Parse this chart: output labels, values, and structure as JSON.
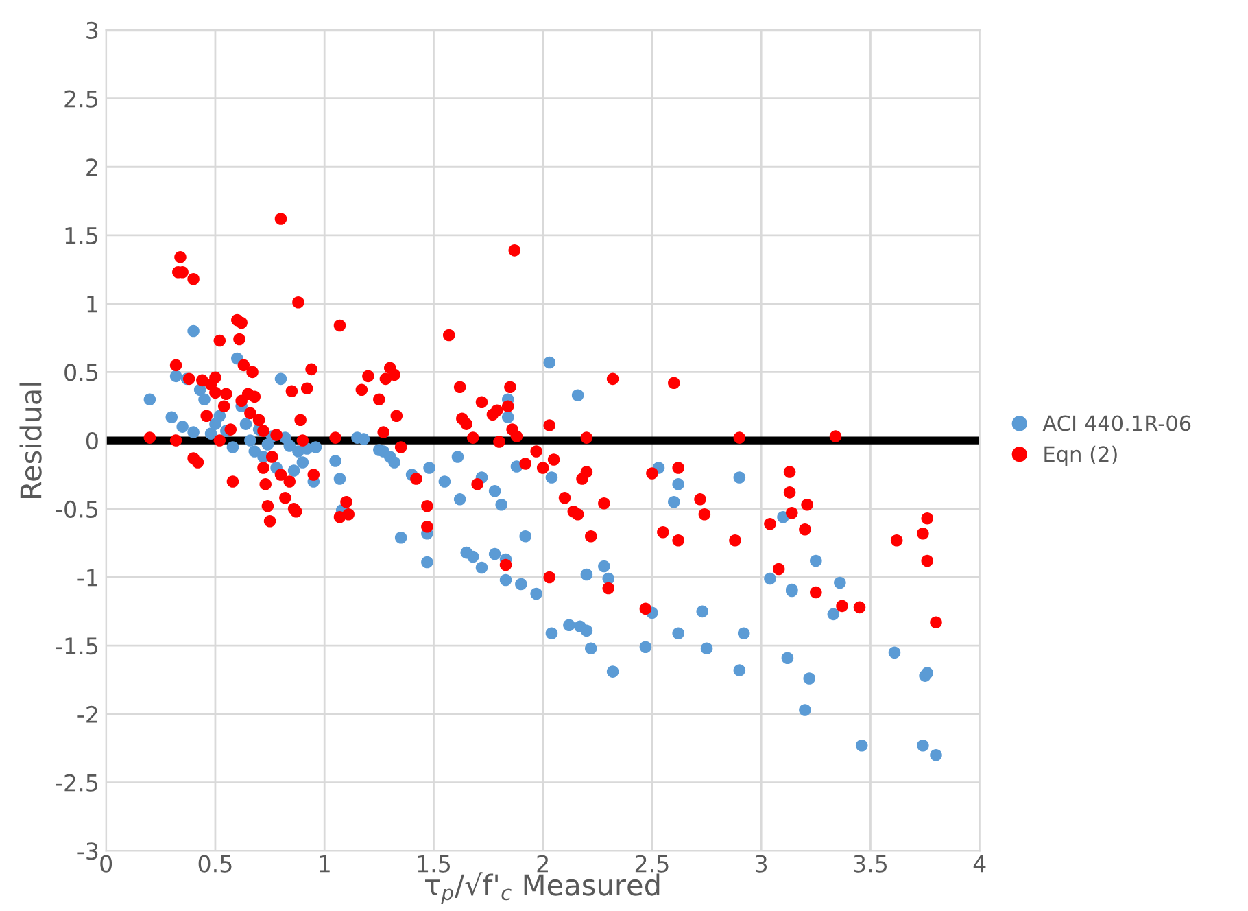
{
  "chart_data": {
    "type": "scatter",
    "xlabel": "τ$_{p}$/√f'$_{c}$ Measured",
    "ylabel": "Residual",
    "xlim": [
      0,
      4
    ],
    "xticks": [
      0,
      0.5,
      1,
      1.5,
      2,
      2.5,
      3,
      3.5,
      4
    ],
    "ylim": [
      -3,
      3
    ],
    "yticks": [
      -3,
      -2.5,
      -2,
      -1.5,
      -1,
      -0.5,
      0,
      0.5,
      1,
      1.5,
      2,
      2.5,
      3
    ],
    "grid": true,
    "legend": "right",
    "marker": "circle",
    "ref_lines": [
      {
        "axis": "y",
        "value": 0,
        "color": "#000000"
      }
    ],
    "series": [
      {
        "name": "ACI 440.1R-06",
        "color": "#5b9bd5",
        "x": [
          0.2,
          0.3,
          0.32,
          0.35,
          0.37,
          0.4,
          0.4,
          0.43,
          0.45,
          0.48,
          0.5,
          0.52,
          0.55,
          0.58,
          0.6,
          0.62,
          0.64,
          0.66,
          0.68,
          0.7,
          0.72,
          0.74,
          0.76,
          0.78,
          0.8,
          0.82,
          0.84,
          0.86,
          0.88,
          0.9,
          0.92,
          0.95,
          0.96,
          1.05,
          1.07,
          1.08,
          1.15,
          1.18,
          1.25,
          1.27,
          1.3,
          1.32,
          1.35,
          1.4,
          1.47,
          1.47,
          1.48,
          1.55,
          1.61,
          1.62,
          1.65,
          1.68,
          1.72,
          1.72,
          1.78,
          1.78,
          1.81,
          1.83,
          1.83,
          1.84,
          1.84,
          1.88,
          1.9,
          1.92,
          1.97,
          2.03,
          2.04,
          2.04,
          2.12,
          2.16,
          2.17,
          2.2,
          2.2,
          2.22,
          2.28,
          2.3,
          2.32,
          2.47,
          2.5,
          2.53,
          2.6,
          2.62,
          2.62,
          2.73,
          2.75,
          2.9,
          2.9,
          2.92,
          3.04,
          3.1,
          3.12,
          3.14,
          3.14,
          3.2,
          3.22,
          3.25,
          3.33,
          3.36,
          3.46,
          3.61,
          3.74,
          3.75,
          3.76,
          3.8
        ],
        "values": [
          0.3,
          0.17,
          0.47,
          0.1,
          0.45,
          0.8,
          0.06,
          0.37,
          0.3,
          0.05,
          0.12,
          0.18,
          0.07,
          -0.05,
          0.6,
          0.25,
          0.12,
          0.0,
          -0.08,
          0.08,
          -0.12,
          -0.03,
          0.03,
          -0.2,
          0.45,
          0.02,
          -0.04,
          -0.22,
          -0.08,
          -0.16,
          -0.06,
          -0.3,
          -0.05,
          -0.15,
          -0.28,
          -0.51,
          0.02,
          0.01,
          -0.07,
          -0.08,
          -0.12,
          -0.16,
          -0.71,
          -0.25,
          -0.68,
          -0.89,
          -0.2,
          -0.3,
          -0.12,
          -0.43,
          -0.82,
          -0.85,
          -0.27,
          -0.93,
          -0.37,
          -0.83,
          -0.47,
          -1.02,
          -0.87,
          0.3,
          0.17,
          -0.19,
          -1.05,
          -0.7,
          -1.12,
          0.57,
          -1.41,
          -0.27,
          -1.35,
          0.33,
          -1.36,
          -1.39,
          -0.98,
          -1.52,
          -0.92,
          -1.01,
          -1.69,
          -1.51,
          -1.26,
          -0.2,
          -0.45,
          -0.32,
          -1.41,
          -1.25,
          -1.52,
          -0.27,
          -1.68,
          -1.41,
          -1.01,
          -0.56,
          -1.59,
          -1.1,
          -1.09,
          -1.97,
          -1.74,
          -0.88,
          -1.27,
          -1.04,
          -2.23,
          -1.55,
          -2.23,
          -1.72,
          -1.7,
          -2.3
        ]
      },
      {
        "name": "Eqn (2)",
        "color": "#ff0000",
        "x": [
          0.2,
          0.32,
          0.32,
          0.33,
          0.34,
          0.35,
          0.38,
          0.4,
          0.4,
          0.42,
          0.44,
          0.46,
          0.48,
          0.5,
          0.5,
          0.52,
          0.52,
          0.54,
          0.55,
          0.57,
          0.58,
          0.6,
          0.61,
          0.62,
          0.62,
          0.63,
          0.65,
          0.66,
          0.67,
          0.68,
          0.7,
          0.72,
          0.72,
          0.73,
          0.74,
          0.75,
          0.76,
          0.78,
          0.8,
          0.8,
          0.82,
          0.84,
          0.85,
          0.86,
          0.87,
          0.88,
          0.89,
          0.9,
          0.92,
          0.94,
          0.95,
          1.05,
          1.07,
          1.07,
          1.11,
          1.1,
          1.17,
          1.2,
          1.25,
          1.27,
          1.28,
          1.3,
          1.32,
          1.33,
          1.35,
          1.42,
          1.47,
          1.47,
          1.57,
          1.62,
          1.63,
          1.65,
          1.68,
          1.7,
          1.72,
          1.77,
          1.79,
          1.8,
          1.83,
          1.84,
          1.85,
          1.86,
          1.87,
          1.88,
          1.92,
          1.97,
          2.0,
          2.03,
          2.03,
          2.05,
          2.1,
          2.14,
          2.16,
          2.18,
          2.2,
          2.2,
          2.22,
          2.28,
          2.3,
          2.32,
          2.47,
          2.5,
          2.55,
          2.6,
          2.62,
          2.62,
          2.72,
          2.74,
          2.88,
          2.9,
          3.04,
          3.08,
          3.13,
          3.13,
          3.14,
          3.2,
          3.21,
          3.25,
          3.34,
          3.37,
          3.45,
          3.62,
          3.74,
          3.76,
          3.76,
          3.8
        ],
        "values": [
          0.02,
          0.0,
          0.55,
          1.23,
          1.34,
          1.23,
          0.45,
          1.18,
          -0.13,
          -0.16,
          0.44,
          0.18,
          0.41,
          0.46,
          0.35,
          0.73,
          0.0,
          0.25,
          0.34,
          0.08,
          -0.3,
          0.88,
          0.74,
          0.86,
          0.29,
          0.55,
          0.34,
          0.2,
          0.5,
          0.32,
          0.15,
          0.07,
          -0.2,
          -0.32,
          -0.48,
          -0.59,
          -0.12,
          0.04,
          1.62,
          -0.25,
          -0.42,
          -0.3,
          0.36,
          -0.5,
          -0.52,
          1.01,
          0.15,
          0.0,
          0.38,
          0.52,
          -0.25,
          0.02,
          0.84,
          -0.56,
          -0.54,
          -0.45,
          0.37,
          0.47,
          0.3,
          0.06,
          0.45,
          0.53,
          0.48,
          0.18,
          -0.05,
          -0.28,
          -0.48,
          -0.63,
          0.77,
          0.39,
          0.16,
          0.12,
          0.02,
          -0.32,
          0.28,
          0.19,
          0.22,
          -0.01,
          -0.91,
          0.25,
          0.39,
          0.08,
          1.39,
          0.03,
          -0.17,
          -0.08,
          -0.2,
          -1.0,
          0.11,
          -0.14,
          -0.42,
          -0.52,
          -0.54,
          -0.28,
          0.02,
          -0.23,
          -0.7,
          -0.46,
          -1.08,
          0.45,
          -1.23,
          -0.24,
          -0.67,
          0.42,
          -0.2,
          -0.73,
          -0.43,
          -0.54,
          -0.73,
          0.02,
          -0.61,
          -0.94,
          -0.23,
          -0.38,
          -0.53,
          -0.65,
          -0.47,
          -1.11,
          0.03,
          -1.21,
          -1.22,
          -0.73,
          -0.68,
          -0.57,
          -0.88,
          -1.33
        ]
      }
    ]
  }
}
